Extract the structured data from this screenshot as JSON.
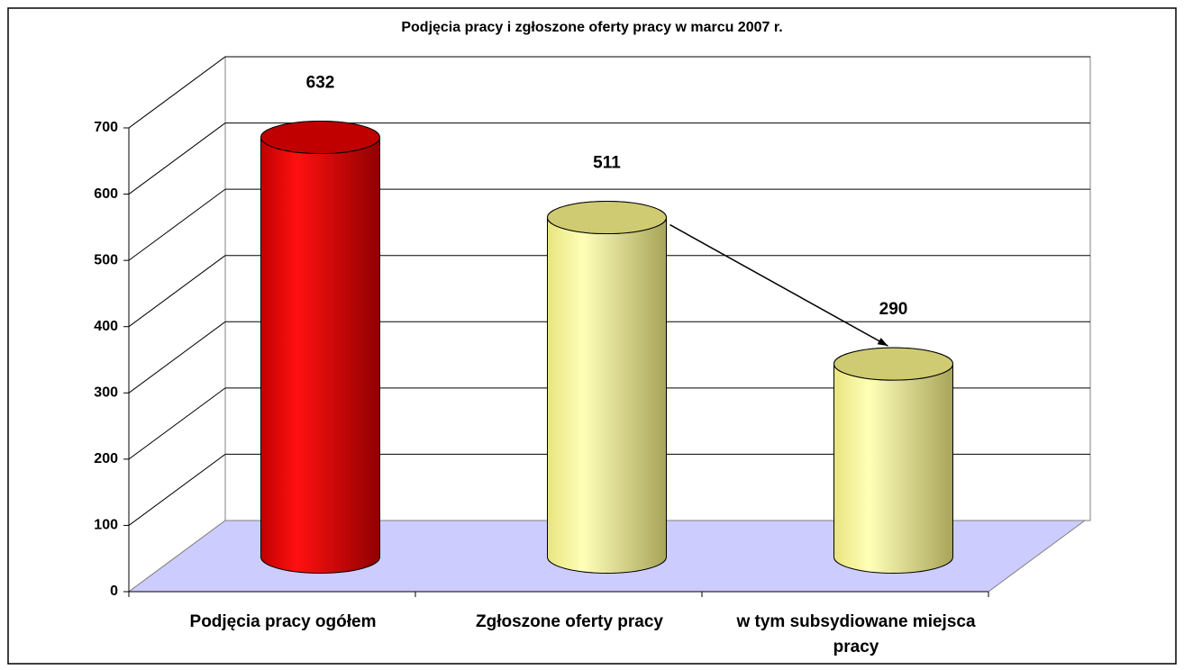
{
  "chart_data": {
    "type": "bar3d",
    "title": "Podjęcia pracy i zgłoszone oferty pracy w marcu 2007 r.",
    "categories": [
      "Podjęcia pracy ogółem",
      "Zgłoszone oferty pracy",
      "w tym subsydiowane miejsca pracy"
    ],
    "values": [
      632,
      511,
      290
    ],
    "colors": [
      "#e00000",
      "#f4f09a",
      "#f4f09a"
    ],
    "ylim": [
      0,
      700
    ],
    "yticks": [
      0,
      100,
      200,
      300,
      400,
      500,
      600,
      700
    ],
    "grid": true,
    "floor_color": "#ccccff"
  }
}
